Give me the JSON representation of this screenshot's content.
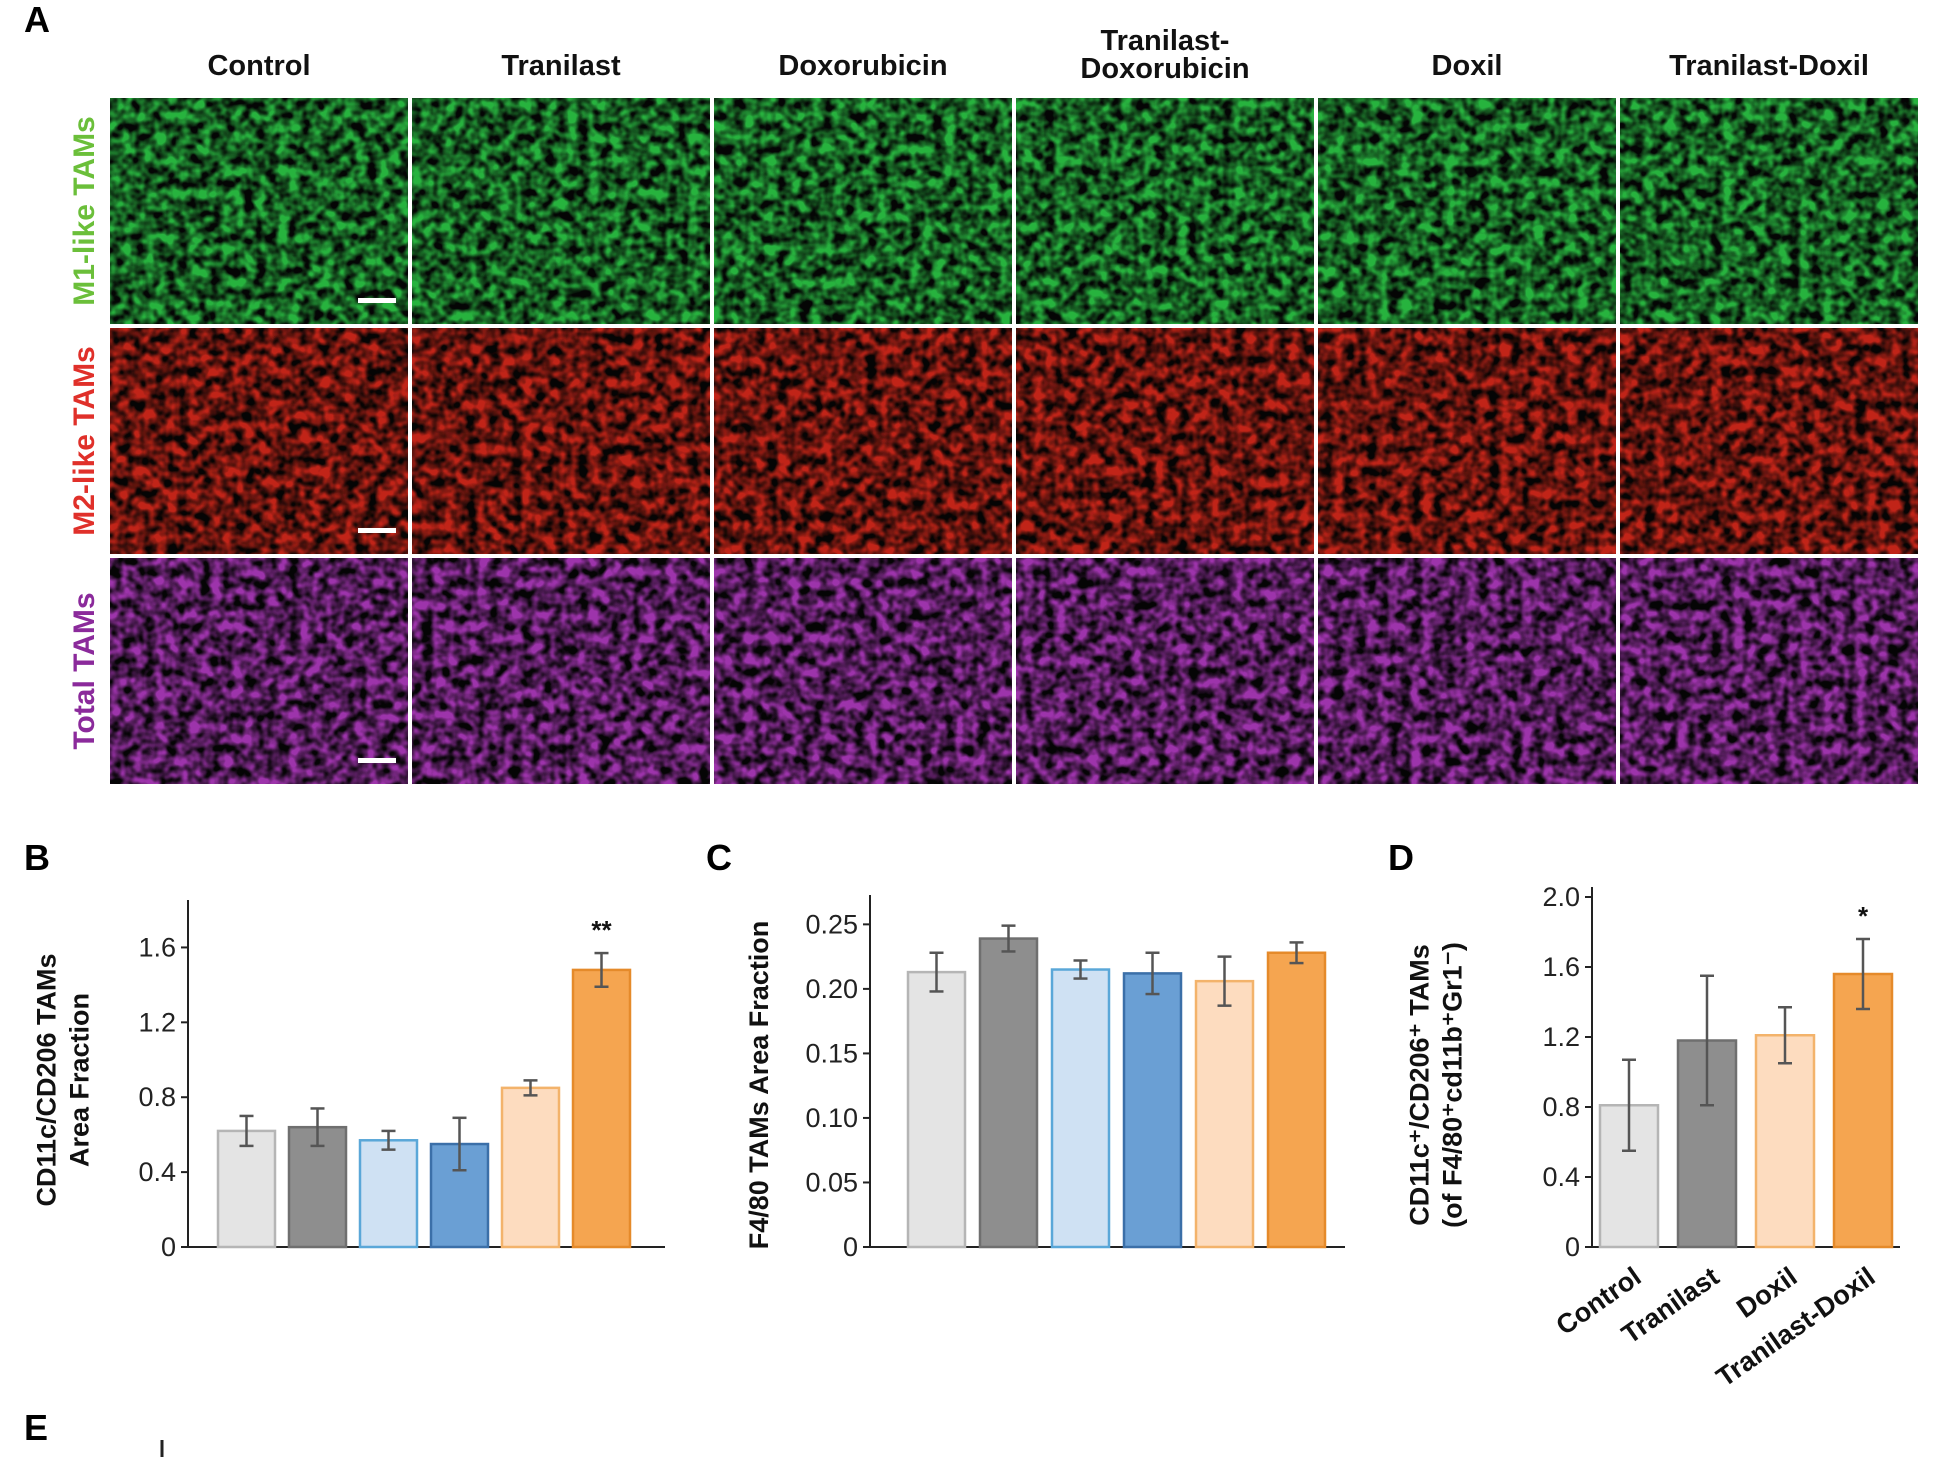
{
  "panel_labels": {
    "a": "A",
    "b": "B",
    "c": "C",
    "d": "D",
    "e": "E"
  },
  "image_grid": {
    "columns": [
      "Control",
      "Tranilast",
      "Doxorubicin",
      "Tranilast-Doxorubicin",
      "Doxil",
      "Tranilast-Doxil"
    ],
    "column_title_lines": [
      [
        "Control"
      ],
      [
        "Tranilast"
      ],
      [
        "Doxorubicin"
      ],
      [
        "Tranilast-",
        "Doxorubicin"
      ],
      [
        "Doxil"
      ],
      [
        "Tranilast-Doxil"
      ]
    ],
    "rows": [
      {
        "label_prefix": "M1-like",
        "label_suffix": "TAMs",
        "prefix_color": "#6bbf3a",
        "suffix_color": "#6bbf3a",
        "stain_color": "#2fd24a"
      },
      {
        "label_prefix": "M2-like",
        "label_suffix": "TAMs",
        "prefix_color": "#e0302a",
        "suffix_color": "#e0302a",
        "stain_color": "#e22a1c"
      },
      {
        "label_prefix": "Total",
        "label_suffix": "TAMs",
        "prefix_color": "#8b2a9b",
        "suffix_color": "#8b2a9b",
        "stain_color": "#b83cc8"
      }
    ],
    "scale_bar_color": "#ffffff"
  },
  "chart_data": [
    {
      "panel": "B",
      "type": "bar",
      "ylabel_lines": [
        "CD11c/CD206 TAMs",
        "Area Fraction"
      ],
      "ylim": [
        0,
        1.8
      ],
      "yticks": [
        "0",
        "0.4",
        "0.8",
        "1.2",
        "1.6"
      ],
      "ytick_values": [
        0,
        0.4,
        0.8,
        1.2,
        1.6
      ],
      "values": [
        0.62,
        0.64,
        0.57,
        0.55,
        0.85,
        1.48
      ],
      "errors": [
        0.08,
        0.1,
        0.05,
        0.14,
        0.04,
        0.09
      ],
      "fill_colors": [
        "#e4e4e4",
        "#8e8e8e",
        "#cfe1f3",
        "#6a9fd4",
        "#fddcbf",
        "#f5a550"
      ],
      "stroke_colors": [
        "#b5b5b5",
        "#6f6f6f",
        "#5aa7d8",
        "#3b6fa8",
        "#f3b36b",
        "#e58a2a"
      ],
      "annotations": [
        "",
        "",
        "",
        "",
        "",
        "**"
      ]
    },
    {
      "panel": "C",
      "type": "bar",
      "ylabel_lines": [
        "F4/80 TAMs Area Fraction"
      ],
      "ylim": [
        0,
        0.265
      ],
      "yticks": [
        "0",
        "0.05",
        "0.10",
        "0.15",
        "0.20",
        "0.25"
      ],
      "ytick_values": [
        0,
        0.05,
        0.1,
        0.15,
        0.2,
        0.25
      ],
      "values": [
        0.213,
        0.239,
        0.215,
        0.212,
        0.206,
        0.228
      ],
      "errors": [
        0.015,
        0.01,
        0.007,
        0.016,
        0.019,
        0.008
      ],
      "fill_colors": [
        "#e4e4e4",
        "#8e8e8e",
        "#cfe1f3",
        "#6a9fd4",
        "#fddcbf",
        "#f5a550"
      ],
      "stroke_colors": [
        "#b5b5b5",
        "#6f6f6f",
        "#5aa7d8",
        "#3b6fa8",
        "#f3b36b",
        "#e58a2a"
      ],
      "annotations": [
        "",
        "",
        "",
        "",
        "",
        ""
      ]
    },
    {
      "panel": "D",
      "type": "bar",
      "ylabel_lines": [
        "CD11c⁺/CD206⁺ TAMs",
        "(of F4/80⁺cd11b⁺Gr1⁻)"
      ],
      "ylim": [
        0,
        2.0
      ],
      "yticks": [
        "0",
        "0.4",
        "0.8",
        "1.2",
        "1.6",
        "2.0"
      ],
      "ytick_values": [
        0,
        0.4,
        0.8,
        1.2,
        1.6,
        2.0
      ],
      "categories": [
        "Control",
        "Tranilast",
        "Doxil",
        "Tranilast-Doxil"
      ],
      "values": [
        0.81,
        1.18,
        1.21,
        1.56
      ],
      "errors": [
        0.26,
        0.37,
        0.16,
        0.2
      ],
      "fill_colors": [
        "#e4e4e4",
        "#8e8e8e",
        "#fddcbf",
        "#f5a550"
      ],
      "stroke_colors": [
        "#b5b5b5",
        "#6f6f6f",
        "#f3b36b",
        "#e58a2a"
      ],
      "annotations": [
        "",
        "",
        "",
        "*"
      ]
    }
  ]
}
